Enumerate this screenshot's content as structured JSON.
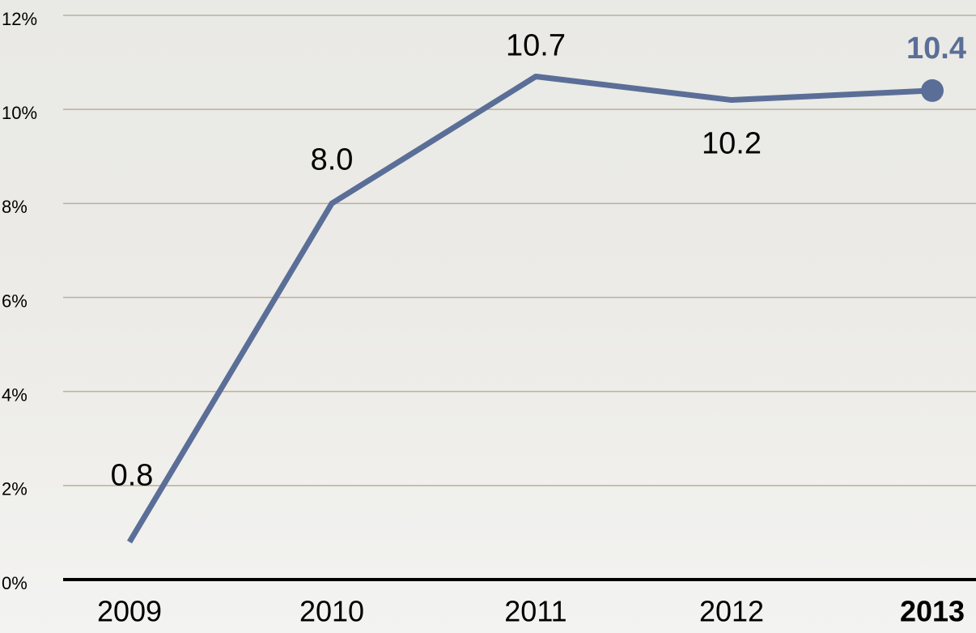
{
  "chart_data": {
    "type": "line",
    "categories": [
      "2009",
      "2010",
      "2011",
      "2012",
      "2013"
    ],
    "values": [
      0.8,
      8.0,
      10.7,
      10.2,
      10.4
    ],
    "value_labels": [
      "0.8",
      "8.0",
      "10.7",
      "10.2",
      "10.4"
    ],
    "color": "#5a6e97",
    "ylim": [
      0,
      12
    ],
    "yticks": [
      {
        "value": 0,
        "label": "0%"
      },
      {
        "value": 2,
        "label": "2%"
      },
      {
        "value": 4,
        "label": "4%"
      },
      {
        "value": 6,
        "label": "6%"
      },
      {
        "value": 8,
        "label": "8%"
      },
      {
        "value": 10,
        "label": "10%"
      },
      {
        "value": 12,
        "label": "12%"
      }
    ],
    "grid": true
  }
}
